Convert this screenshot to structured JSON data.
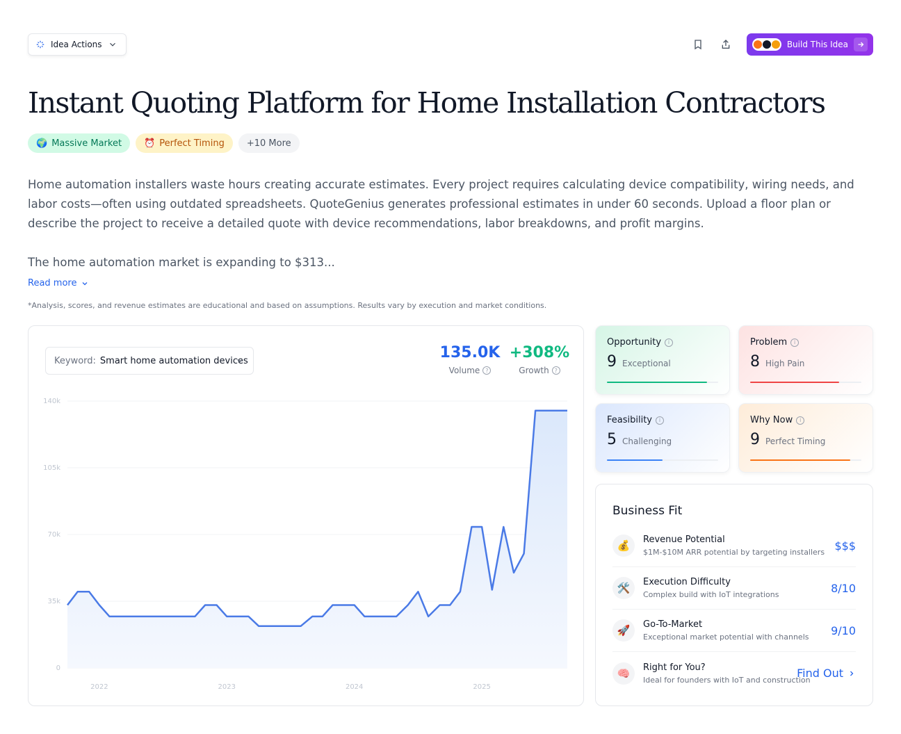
{
  "toolbar": {
    "idea_actions_label": "Idea Actions",
    "build_label": "Build This Idea"
  },
  "title": "Instant Quoting Platform for Home Installation Contractors",
  "tags": [
    {
      "emoji": "🌍",
      "label": "Massive Market"
    },
    {
      "emoji": "⏰",
      "label": "Perfect Timing"
    },
    {
      "label": "+10 More"
    }
  ],
  "description": "Home automation installers waste hours creating accurate estimates. Every project requires calculating device compatibility, wiring needs, and labor costs—often using outdated spreadsheets. QuoteGenius generates professional estimates in under 60 seconds. Upload a floor plan or describe the project to receive a detailed quote with device recommendations, labor breakdowns, and profit margins.",
  "description_more": "The home automation market is expanding to $313...",
  "read_more": "Read more",
  "disclaimer": "*Analysis, scores, and revenue estimates are educational and based on assumptions. Results vary by execution and market conditions.",
  "keyword": {
    "label": "Keyword:",
    "value": "Smart home automation devices"
  },
  "stats": {
    "volume": {
      "value": "135.0K",
      "label": "Volume"
    },
    "growth": {
      "value": "+308%",
      "label": "Growth"
    }
  },
  "chart_data": {
    "type": "area",
    "y_ticks": [
      "140k",
      "105k",
      "70k",
      "35k",
      "0"
    ],
    "ylim": [
      0,
      140000
    ],
    "x_ticks": [
      {
        "label": "2022",
        "x": 2022.0
      },
      {
        "label": "2023",
        "x": 2023.0
      },
      {
        "label": "2024",
        "x": 2024.0
      },
      {
        "label": "2025",
        "x": 2025.0
      }
    ],
    "xlim": [
      2021.75,
      2025.67
    ],
    "points": [
      [
        2021.75,
        33000
      ],
      [
        2021.83,
        40000
      ],
      [
        2021.92,
        40000
      ],
      [
        2022.0,
        33000
      ],
      [
        2022.08,
        27000
      ],
      [
        2022.17,
        27000
      ],
      [
        2022.25,
        27000
      ],
      [
        2022.33,
        27000
      ],
      [
        2022.42,
        27000
      ],
      [
        2022.5,
        27000
      ],
      [
        2022.58,
        27000
      ],
      [
        2022.67,
        27000
      ],
      [
        2022.75,
        27000
      ],
      [
        2022.83,
        33000
      ],
      [
        2022.92,
        33000
      ],
      [
        2023.0,
        27000
      ],
      [
        2023.08,
        27000
      ],
      [
        2023.17,
        27000
      ],
      [
        2023.25,
        22000
      ],
      [
        2023.33,
        22000
      ],
      [
        2023.42,
        22000
      ],
      [
        2023.5,
        22000
      ],
      [
        2023.58,
        22000
      ],
      [
        2023.67,
        27000
      ],
      [
        2023.75,
        27000
      ],
      [
        2023.83,
        33000
      ],
      [
        2023.92,
        33000
      ],
      [
        2024.0,
        33000
      ],
      [
        2024.08,
        27000
      ],
      [
        2024.17,
        27000
      ],
      [
        2024.25,
        27000
      ],
      [
        2024.33,
        27000
      ],
      [
        2024.42,
        33000
      ],
      [
        2024.5,
        40000
      ],
      [
        2024.58,
        27000
      ],
      [
        2024.67,
        33000
      ],
      [
        2024.75,
        33000
      ],
      [
        2024.83,
        40000
      ],
      [
        2024.92,
        74000
      ],
      [
        2025.0,
        74000
      ],
      [
        2025.08,
        41000
      ],
      [
        2025.17,
        74000
      ],
      [
        2025.25,
        50000
      ],
      [
        2025.33,
        60000
      ],
      [
        2025.42,
        135000
      ],
      [
        2025.5,
        135000
      ],
      [
        2025.58,
        135000
      ],
      [
        2025.67,
        135000
      ]
    ],
    "line_color": "#4a7ae6",
    "fill_color": "#dbe8fb",
    "grid": true
  },
  "scores": [
    {
      "key": "opportunity",
      "label": "Opportunity",
      "value": "9",
      "text": "Exceptional",
      "fraction": 0.9,
      "color": "#10b981",
      "bg": "linear-gradient(135deg,#d6f5e6,#ffffff)"
    },
    {
      "key": "problem",
      "label": "Problem",
      "value": "8",
      "text": "High Pain",
      "fraction": 0.8,
      "color": "#ef4444",
      "bg": "linear-gradient(135deg,#fde2e2,#ffffff)"
    },
    {
      "key": "feasibility",
      "label": "Feasibility",
      "value": "5",
      "text": "Challenging",
      "fraction": 0.5,
      "color": "#3b82f6",
      "bg": "linear-gradient(135deg,#dbe7fd,#ffffff)"
    },
    {
      "key": "why-now",
      "label": "Why Now",
      "value": "9",
      "text": "Perfect Timing",
      "fraction": 0.9,
      "color": "#f97316",
      "bg": "linear-gradient(135deg,#feecd9,#ffffff)"
    }
  ],
  "business_fit": {
    "title": "Business Fit",
    "rows": [
      {
        "icon": "💰",
        "name": "Revenue Potential",
        "sub": "$1M-$10M ARR potential by targeting installers",
        "value": "$$$"
      },
      {
        "icon": "🛠️",
        "name": "Execution Difficulty",
        "sub": "Complex build with IoT integrations",
        "value": "8/10"
      },
      {
        "icon": "🚀",
        "name": "Go-To-Market",
        "sub": "Exceptional market potential with channels",
        "value": "9/10"
      },
      {
        "icon": "🧠",
        "name": "Right for You?",
        "sub": "Ideal for founders with IoT and construction",
        "value": "Find Out"
      }
    ]
  }
}
